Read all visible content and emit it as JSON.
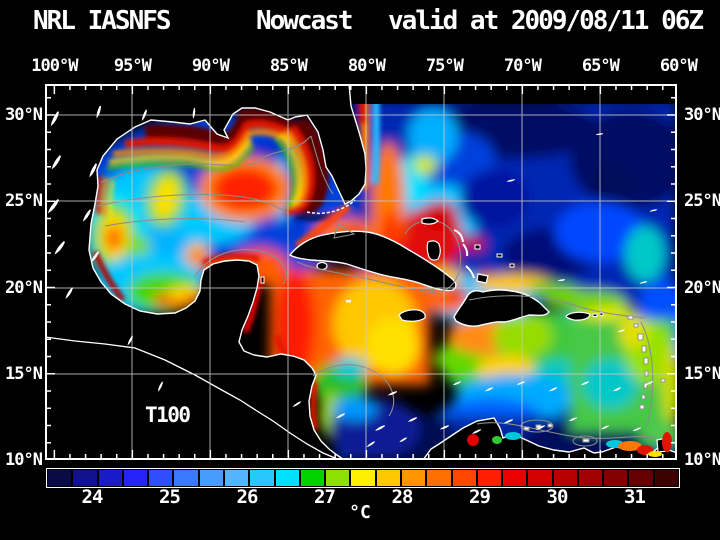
{
  "title": {
    "system": "NRL IASNFS",
    "product": "Nowcast",
    "validity": "valid at 2009/08/11 06Z"
  },
  "axes": {
    "lon_labels": [
      "100°W",
      "95°W",
      "90°W",
      "85°W",
      "80°W",
      "75°W",
      "70°W",
      "65°W",
      "60°W"
    ],
    "lat_labels": [
      "30°N",
      "25°N",
      "20°N",
      "15°N",
      "10°N"
    ]
  },
  "map": {
    "overlay_label": "T100"
  },
  "colorbar": {
    "unit": "°C",
    "tick_labels": [
      "24",
      "25",
      "26",
      "27",
      "28",
      "29",
      "30",
      "31"
    ],
    "segment_colors": [
      "#0A0A46",
      "#12128C",
      "#1A1AC8",
      "#2424FA",
      "#2E4EFF",
      "#3A78FF",
      "#489CFF",
      "#54B4FF",
      "#28C8FF",
      "#00E1FF",
      "#00D200",
      "#8CE100",
      "#FFF000",
      "#FFC800",
      "#FF9600",
      "#FF6E00",
      "#FF4600",
      "#FF1E00",
      "#EB0000",
      "#D20000",
      "#B90000",
      "#A00000",
      "#820000",
      "#640000",
      "#3C0000"
    ]
  },
  "colors": {
    "background": "#000000",
    "text": "#FFFFFF",
    "grid": "#C8C8C8",
    "coastline": "#FFFFFF",
    "bathymetry_contour": "#8C8C8C"
  },
  "chart_data": {
    "type": "heatmap",
    "title": "NRL IASNFS Nowcast valid at 2009/08/11 06Z",
    "variable": "T100",
    "unit": "°C",
    "colorbar_values": [
      24,
      25,
      26,
      27,
      28,
      29,
      30,
      31
    ],
    "lon_ticks_deg_w": [
      100,
      95,
      90,
      85,
      80,
      75,
      70,
      65,
      60
    ],
    "lat_ticks_deg_n": [
      30,
      25,
      20,
      15,
      10
    ]
  }
}
